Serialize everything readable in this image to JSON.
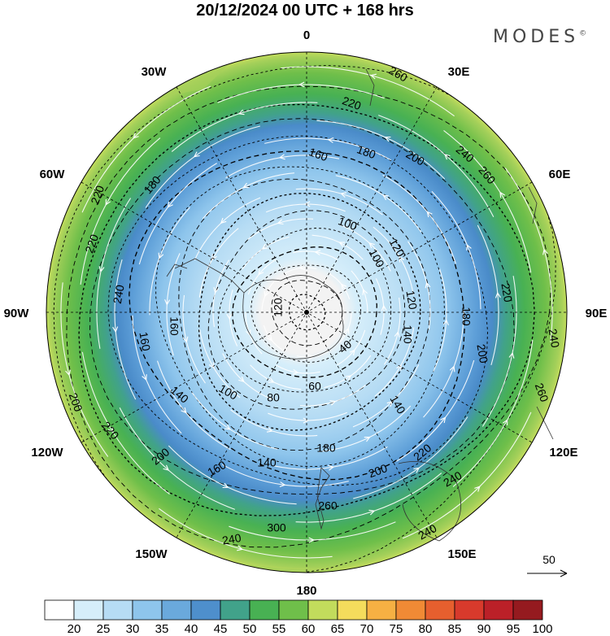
{
  "title": "20/12/2024  00 UTC  + 168 hrs",
  "brand": "MODES",
  "brand_mark": "©",
  "longitude_labels": [
    "0",
    "30E",
    "60E",
    "90E",
    "120E",
    "150E",
    "180",
    "150W",
    "120W",
    "90W",
    "60W",
    "30W"
  ],
  "contour_labels": [
    "260",
    "220",
    "180",
    "160",
    "200",
    "240",
    "260",
    "100",
    "120",
    "120",
    "180",
    "220",
    "240",
    "200",
    "260",
    "140",
    "40",
    "60",
    "80",
    "100",
    "140",
    "160",
    "140",
    "180",
    "200",
    "220",
    "240",
    "260",
    "300",
    "240",
    "220",
    "160",
    "200",
    "220",
    "240",
    "160",
    "120",
    "140",
    "100",
    "180",
    "200",
    "240",
    "220",
    "160"
  ],
  "reference_vector_label": "50",
  "colorbar_labels": [
    "20",
    "25",
    "30",
    "35",
    "40",
    "45",
    "50",
    "55",
    "60",
    "65",
    "70",
    "75",
    "80",
    "85",
    "90",
    "95",
    "100"
  ],
  "colors": {
    "bins": [
      "#ffffff",
      "#d6eefa",
      "#b6dcf4",
      "#8ec5ec",
      "#6aa9dc",
      "#4e8fcc",
      "#41a28a",
      "#48b153",
      "#6fbf4a",
      "#c2dc5c",
      "#f4dc5c",
      "#f6b043",
      "#f08a35",
      "#e65f2e",
      "#d83a2c",
      "#bb2028",
      "#951a1f"
    ]
  }
}
